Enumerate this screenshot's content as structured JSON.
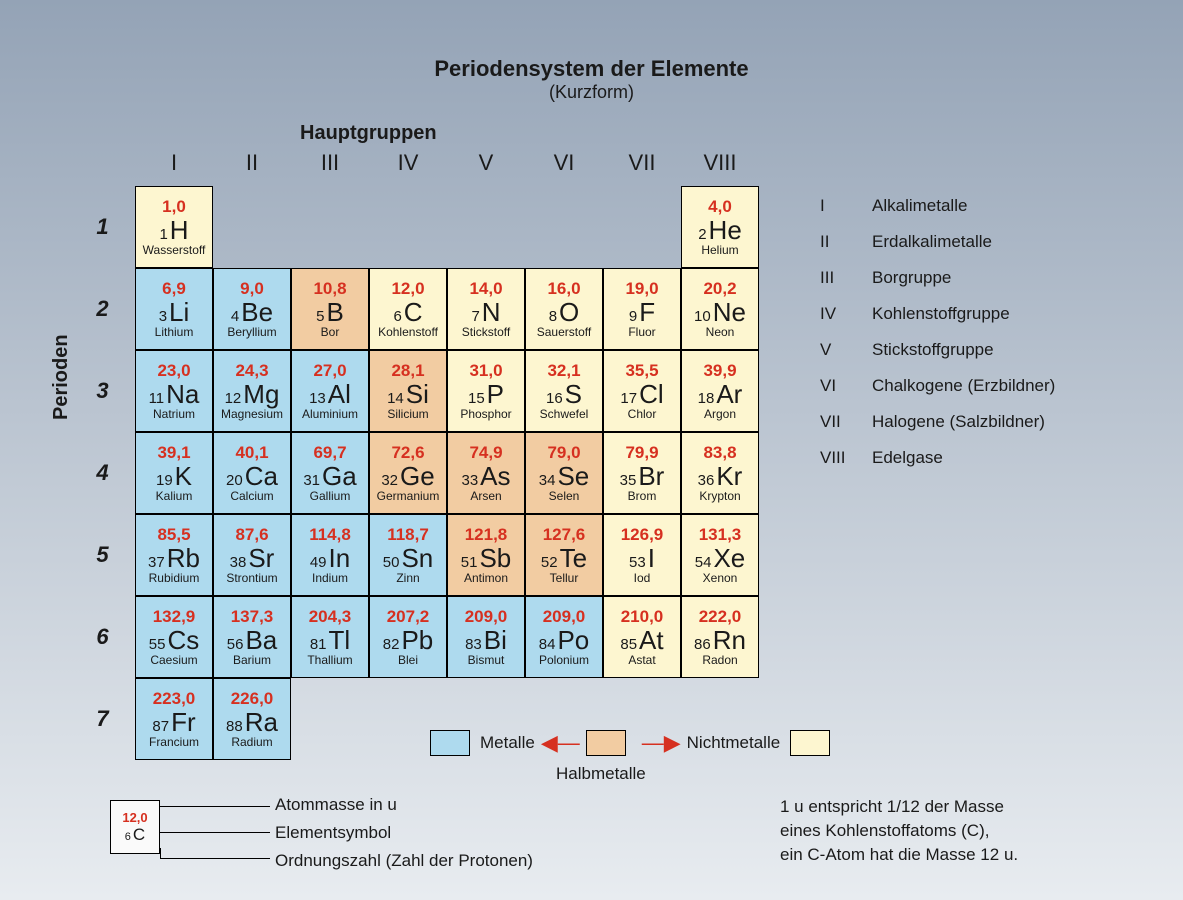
{
  "title": "Periodensystem der Elemente",
  "subtitle": "(Kurzform)",
  "hauptgruppen_label": "Hauptgruppen",
  "perioden_label": "Perioden",
  "column_headers": [
    "I",
    "II",
    "III",
    "IV",
    "V",
    "VI",
    "VII",
    "VIII"
  ],
  "row_headers": [
    "1",
    "2",
    "3",
    "4",
    "5",
    "6",
    "7"
  ],
  "colors": {
    "metal": "#aedaee",
    "metalloid": "#f2cca2",
    "nonmetal": "#fdf6d0",
    "mass_text": "#d63020",
    "border": "#000000"
  },
  "groups_legend": [
    {
      "n": "I",
      "label": "Alkalimetalle"
    },
    {
      "n": "II",
      "label": "Erdalkalimetalle"
    },
    {
      "n": "III",
      "label": "Borgruppe"
    },
    {
      "n": "IV",
      "label": "Kohlenstoffgruppe"
    },
    {
      "n": "V",
      "label": "Stickstoffgruppe"
    },
    {
      "n": "VI",
      "label": "Chalkogene (Erzbildner)"
    },
    {
      "n": "VII",
      "label": "Halogene (Salzbildner)"
    },
    {
      "n": "VIII",
      "label": "Edelgase"
    }
  ],
  "legend_metals": {
    "metalle": "Metalle",
    "halbmetalle": "Halbmetalle",
    "nichtmetalle": "Nichtmetalle"
  },
  "key": {
    "example": {
      "mass": "12,0",
      "num": "6",
      "sym": "C"
    },
    "atommasse": "Atommasse in u",
    "elementsymbol": "Elementsymbol",
    "ordnungszahl": "Ordnungszahl (Zahl der Protonen)"
  },
  "note_line1": "1 u entspricht 1/12 der Masse",
  "note_line2": "eines Kohlenstoffatoms (C),",
  "note_line3": "ein C-Atom hat die Masse 12 u.",
  "elements": [
    [
      {
        "mass": "1,0",
        "num": 1,
        "sym": "H",
        "name": "Wasserstoff",
        "cat": "nonmetal"
      },
      null,
      null,
      null,
      null,
      null,
      null,
      {
        "mass": "4,0",
        "num": 2,
        "sym": "He",
        "name": "Helium",
        "cat": "nonmetal"
      }
    ],
    [
      {
        "mass": "6,9",
        "num": 3,
        "sym": "Li",
        "name": "Lithium",
        "cat": "metal"
      },
      {
        "mass": "9,0",
        "num": 4,
        "sym": "Be",
        "name": "Beryllium",
        "cat": "metal"
      },
      {
        "mass": "10,8",
        "num": 5,
        "sym": "B",
        "name": "Bor",
        "cat": "metalloid"
      },
      {
        "mass": "12,0",
        "num": 6,
        "sym": "C",
        "name": "Kohlenstoff",
        "cat": "nonmetal"
      },
      {
        "mass": "14,0",
        "num": 7,
        "sym": "N",
        "name": "Stickstoff",
        "cat": "nonmetal"
      },
      {
        "mass": "16,0",
        "num": 8,
        "sym": "O",
        "name": "Sauerstoff",
        "cat": "nonmetal"
      },
      {
        "mass": "19,0",
        "num": 9,
        "sym": "F",
        "name": "Fluor",
        "cat": "nonmetal"
      },
      {
        "mass": "20,2",
        "num": 10,
        "sym": "Ne",
        "name": "Neon",
        "cat": "nonmetal"
      }
    ],
    [
      {
        "mass": "23,0",
        "num": 11,
        "sym": "Na",
        "name": "Natrium",
        "cat": "metal"
      },
      {
        "mass": "24,3",
        "num": 12,
        "sym": "Mg",
        "name": "Magnesium",
        "cat": "metal"
      },
      {
        "mass": "27,0",
        "num": 13,
        "sym": "Al",
        "name": "Aluminium",
        "cat": "metal"
      },
      {
        "mass": "28,1",
        "num": 14,
        "sym": "Si",
        "name": "Silicium",
        "cat": "metalloid"
      },
      {
        "mass": "31,0",
        "num": 15,
        "sym": "P",
        "name": "Phosphor",
        "cat": "nonmetal"
      },
      {
        "mass": "32,1",
        "num": 16,
        "sym": "S",
        "name": "Schwefel",
        "cat": "nonmetal"
      },
      {
        "mass": "35,5",
        "num": 17,
        "sym": "Cl",
        "name": "Chlor",
        "cat": "nonmetal"
      },
      {
        "mass": "39,9",
        "num": 18,
        "sym": "Ar",
        "name": "Argon",
        "cat": "nonmetal"
      }
    ],
    [
      {
        "mass": "39,1",
        "num": 19,
        "sym": "K",
        "name": "Kalium",
        "cat": "metal"
      },
      {
        "mass": "40,1",
        "num": 20,
        "sym": "Ca",
        "name": "Calcium",
        "cat": "metal"
      },
      {
        "mass": "69,7",
        "num": 31,
        "sym": "Ga",
        "name": "Gallium",
        "cat": "metal"
      },
      {
        "mass": "72,6",
        "num": 32,
        "sym": "Ge",
        "name": "Germanium",
        "cat": "metalloid"
      },
      {
        "mass": "74,9",
        "num": 33,
        "sym": "As",
        "name": "Arsen",
        "cat": "metalloid"
      },
      {
        "mass": "79,0",
        "num": 34,
        "sym": "Se",
        "name": "Selen",
        "cat": "metalloid"
      },
      {
        "mass": "79,9",
        "num": 35,
        "sym": "Br",
        "name": "Brom",
        "cat": "nonmetal"
      },
      {
        "mass": "83,8",
        "num": 36,
        "sym": "Kr",
        "name": "Krypton",
        "cat": "nonmetal"
      }
    ],
    [
      {
        "mass": "85,5",
        "num": 37,
        "sym": "Rb",
        "name": "Rubidium",
        "cat": "metal"
      },
      {
        "mass": "87,6",
        "num": 38,
        "sym": "Sr",
        "name": "Strontium",
        "cat": "metal"
      },
      {
        "mass": "114,8",
        "num": 49,
        "sym": "In",
        "name": "Indium",
        "cat": "metal"
      },
      {
        "mass": "118,7",
        "num": 50,
        "sym": "Sn",
        "name": "Zinn",
        "cat": "metal"
      },
      {
        "mass": "121,8",
        "num": 51,
        "sym": "Sb",
        "name": "Antimon",
        "cat": "metalloid"
      },
      {
        "mass": "127,6",
        "num": 52,
        "sym": "Te",
        "name": "Tellur",
        "cat": "metalloid"
      },
      {
        "mass": "126,9",
        "num": 53,
        "sym": "I",
        "name": "Iod",
        "cat": "nonmetal"
      },
      {
        "mass": "131,3",
        "num": 54,
        "sym": "Xe",
        "name": "Xenon",
        "cat": "nonmetal"
      }
    ],
    [
      {
        "mass": "132,9",
        "num": 55,
        "sym": "Cs",
        "name": "Caesium",
        "cat": "metal"
      },
      {
        "mass": "137,3",
        "num": 56,
        "sym": "Ba",
        "name": "Barium",
        "cat": "metal"
      },
      {
        "mass": "204,3",
        "num": 81,
        "sym": "Tl",
        "name": "Thallium",
        "cat": "metal"
      },
      {
        "mass": "207,2",
        "num": 82,
        "sym": "Pb",
        "name": "Blei",
        "cat": "metal"
      },
      {
        "mass": "209,0",
        "num": 83,
        "sym": "Bi",
        "name": "Bismut",
        "cat": "metal"
      },
      {
        "mass": "209,0",
        "num": 84,
        "sym": "Po",
        "name": "Polonium",
        "cat": "metal"
      },
      {
        "mass": "210,0",
        "num": 85,
        "sym": "At",
        "name": "Astat",
        "cat": "nonmetal"
      },
      {
        "mass": "222,0",
        "num": 86,
        "sym": "Rn",
        "name": "Radon",
        "cat": "nonmetal"
      }
    ],
    [
      {
        "mass": "223,0",
        "num": 87,
        "sym": "Fr",
        "name": "Francium",
        "cat": "metal"
      },
      {
        "mass": "226,0",
        "num": 88,
        "sym": "Ra",
        "name": "Radium",
        "cat": "metal"
      },
      null,
      null,
      null,
      null,
      null,
      null
    ]
  ]
}
